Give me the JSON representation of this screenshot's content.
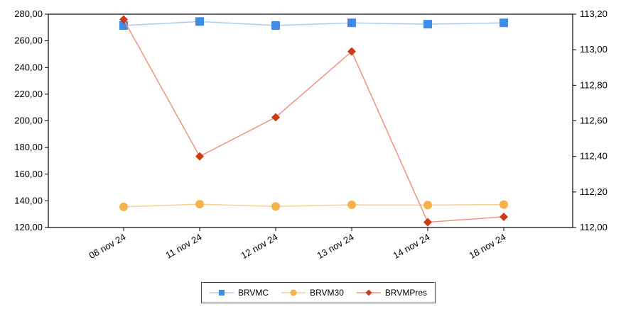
{
  "chart_data": {
    "type": "line",
    "categories": [
      "08 nov 24",
      "11 nov 24",
      "12 nov 24",
      "13 nov 24",
      "14 nov 24",
      "18 nov 24"
    ],
    "y_left": {
      "min": 120,
      "max": 280,
      "ticks": [
        "120,00",
        "140,00",
        "160,00",
        "180,00",
        "200,00",
        "220,00",
        "240,00",
        "260,00",
        "280,00"
      ]
    },
    "y_right": {
      "min": 112.0,
      "max": 113.2,
      "ticks": [
        "112,00",
        "112,20",
        "112,40",
        "112,60",
        "112,80",
        "113,00",
        "113,20"
      ]
    },
    "series": [
      {
        "name": "BRVMC",
        "axis": "left",
        "color": "#3d8de8",
        "line_color": "#a9cbf2",
        "marker": "square",
        "values": [
          271.5,
          274.5,
          271.5,
          273.5,
          272.5,
          273.5
        ]
      },
      {
        "name": "BRVM30",
        "axis": "left",
        "color": "#f6b24a",
        "line_color": "#f8cf8e",
        "marker": "circle",
        "values": [
          135.5,
          137.5,
          135.8,
          137.0,
          136.8,
          137.2
        ]
      },
      {
        "name": "BRVMPres",
        "axis": "right",
        "color": "#cc3a12",
        "line_color": "#f0937a",
        "marker": "diamond",
        "values": [
          113.17,
          112.4,
          112.62,
          112.99,
          112.03,
          112.06
        ]
      }
    ],
    "grid": false,
    "legend": "bottom"
  }
}
